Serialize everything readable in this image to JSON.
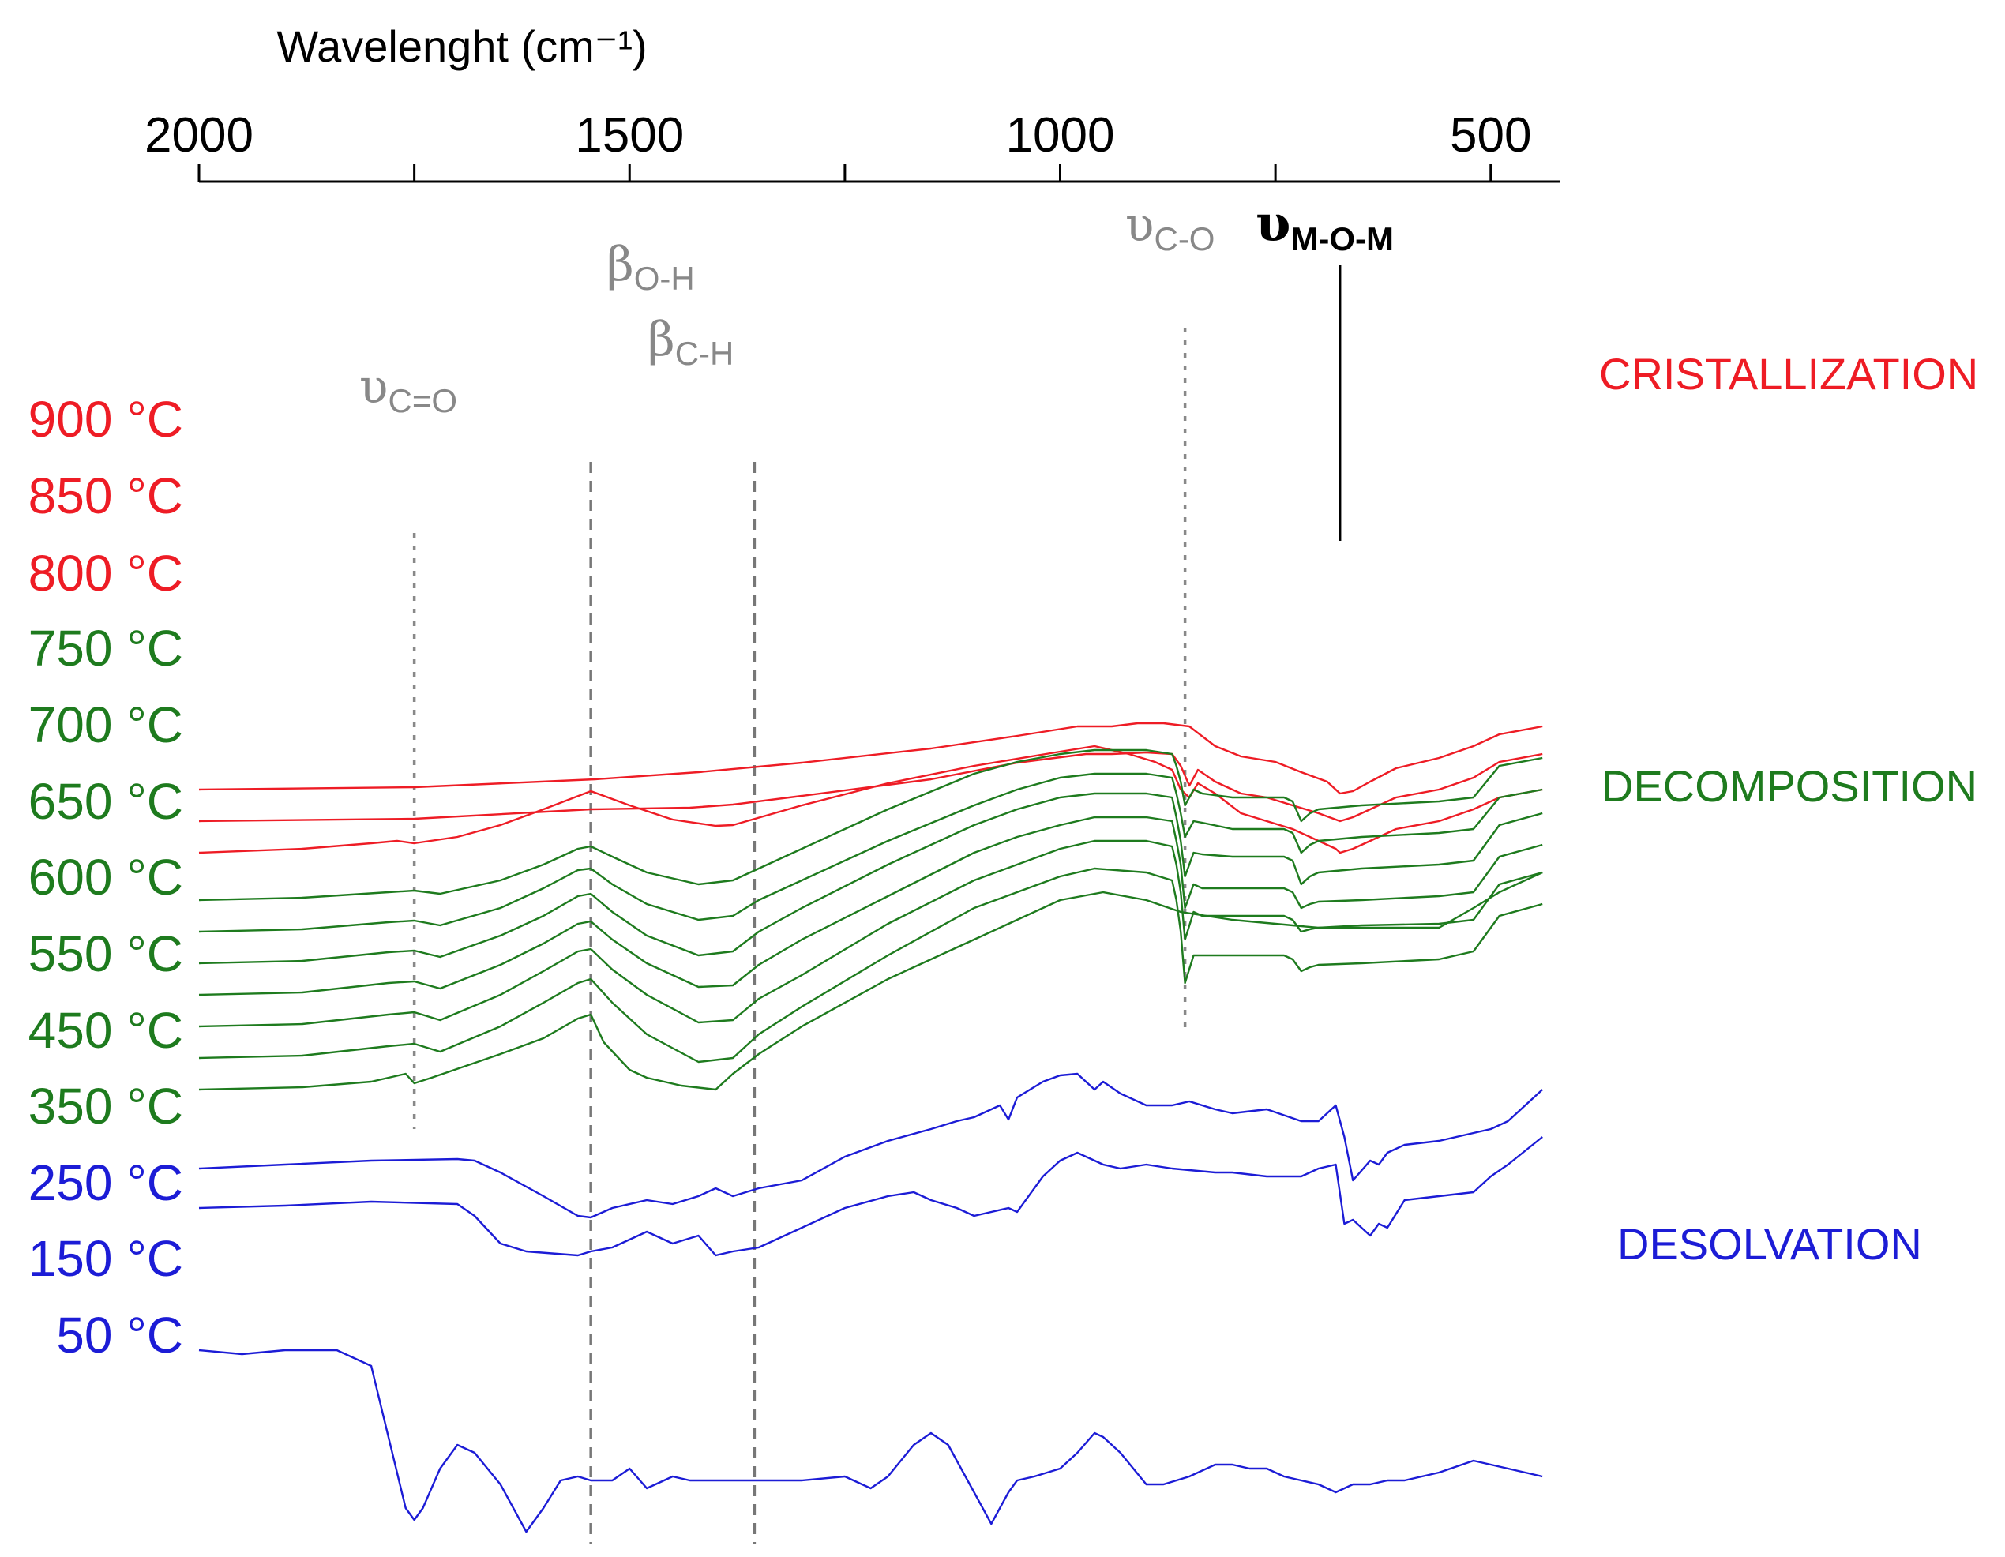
{
  "chart_data": {
    "type": "line",
    "title": "",
    "xlabel": "Wavelenght (cm⁻¹)",
    "xlim": [
      2000,
      420
    ],
    "ylabel": "",
    "x_ticks": [
      2000,
      1750,
      1500,
      1250,
      1000,
      750,
      500
    ],
    "x_tick_labels": [
      "2000",
      "",
      "1500",
      "",
      "1000",
      "",
      "500"
    ],
    "band_annotations": [
      {
        "symbol": "υ",
        "sub": "C=O",
        "x": 1750,
        "style": "dotted"
      },
      {
        "symbol": "β",
        "sub": "O-H",
        "x": 1545,
        "style": "dashed"
      },
      {
        "symbol": "β",
        "sub": "C-H",
        "x": 1355,
        "style": "dashed"
      },
      {
        "symbol": "υ",
        "sub": "C-O",
        "x": 855,
        "style": "dotted"
      },
      {
        "symbol": "υ",
        "sub": "M-O-M",
        "x": 675,
        "style": "solid"
      }
    ],
    "stage_labels": [
      {
        "text": "CRISTALLIZATION",
        "color": "#ee1c25"
      },
      {
        "text": "DECOMPOSITION",
        "color": "#1e7b1e"
      },
      {
        "text": "DESOLVATION",
        "color": "#1c1cd6"
      }
    ],
    "series": [
      {
        "name": "900 °C",
        "color": "#ee1c25",
        "offset": 920,
        "x": [
          2000,
          1750,
          1540,
          1420,
          1300,
          1150,
          1050,
          980,
          940,
          910,
          880,
          850,
          820,
          790,
          750,
          720,
          690,
          675,
          660,
          640,
          610,
          560,
          520,
          490,
          440
        ],
        "y": [
          0,
          3,
          13,
          22,
          34,
          52,
          68,
          80,
          80,
          84,
          84,
          80,
          55,
          42,
          35,
          22,
          10,
          -5,
          -2,
          10,
          27,
          40,
          55,
          70,
          80
        ]
      },
      {
        "name": "850 °C",
        "color": "#ee1c25",
        "offset": 880,
        "x": [
          2000,
          1750,
          1545,
          1430,
          1380,
          1300,
          1150,
          1050,
          970,
          940,
          900,
          870,
          860,
          850,
          840,
          820,
          790,
          760,
          730,
          700,
          675,
          660,
          640,
          610,
          560,
          520,
          490,
          440
        ],
        "y": [
          0,
          3,
          15,
          17,
          21,
          32,
          53,
          74,
          85,
          85,
          87,
          85,
          70,
          45,
          65,
          50,
          35,
          30,
          20,
          10,
          0,
          5,
          15,
          30,
          40,
          55,
          75,
          85
        ]
      },
      {
        "name": "800 °C",
        "color": "#ee1c25",
        "offset": 840,
        "x": [
          2000,
          1880,
          1800,
          1770,
          1750,
          1700,
          1650,
          1600,
          1545,
          1500,
          1450,
          1400,
          1380,
          1300,
          1200,
          1100,
          1000,
          960,
          920,
          890,
          870,
          860,
          850,
          840,
          820,
          790,
          760,
          730,
          700,
          680,
          675,
          660,
          640,
          610,
          560,
          520,
          490,
          440
        ],
        "y": [
          0,
          5,
          12,
          15,
          12,
          20,
          35,
          55,
          78,
          60,
          42,
          34,
          35,
          60,
          88,
          110,
          128,
          135,
          125,
          115,
          105,
          80,
          70,
          88,
          75,
          50,
          40,
          30,
          15,
          5,
          0,
          5,
          15,
          30,
          40,
          55,
          70,
          80
        ]
      },
      {
        "name": "750 °C",
        "color": "#1e7b1e",
        "offset": 780,
        "x": [
          2000,
          1880,
          1780,
          1750,
          1720,
          1650,
          1600,
          1560,
          1545,
          1520,
          1480,
          1420,
          1380,
          1350,
          1300,
          1200,
          1100,
          1050,
          1000,
          960,
          900,
          870,
          865,
          860,
          855,
          845,
          835,
          800,
          740,
          730,
          720,
          710,
          700,
          650,
          560,
          520,
          490,
          440
        ],
        "y": [
          0,
          3,
          10,
          12,
          8,
          25,
          45,
          65,
          68,
          55,
          35,
          20,
          25,
          40,
          65,
          115,
          160,
          175,
          185,
          190,
          190,
          185,
          170,
          150,
          120,
          140,
          135,
          130,
          130,
          125,
          100,
          110,
          115,
          120,
          125,
          130,
          170,
          180
        ]
      },
      {
        "name": "700 °C",
        "color": "#1e7b1e",
        "offset": 740,
        "x": [
          2000,
          1880,
          1780,
          1750,
          1720,
          1650,
          1600,
          1560,
          1545,
          1520,
          1480,
          1420,
          1380,
          1350,
          1300,
          1200,
          1100,
          1050,
          1000,
          960,
          900,
          870,
          865,
          860,
          855,
          845,
          835,
          800,
          740,
          730,
          720,
          710,
          700,
          650,
          560,
          520,
          490,
          440
        ],
        "y": [
          0,
          3,
          12,
          14,
          8,
          30,
          55,
          78,
          80,
          60,
          35,
          15,
          20,
          40,
          65,
          115,
          160,
          180,
          195,
          200,
          200,
          195,
          175,
          150,
          120,
          140,
          138,
          130,
          130,
          125,
          100,
          110,
          115,
          120,
          125,
          130,
          170,
          180
        ]
      },
      {
        "name": "650 °C",
        "color": "#1e7b1e",
        "offset": 700,
        "x": [
          2000,
          1880,
          1780,
          1750,
          1720,
          1650,
          1600,
          1560,
          1545,
          1520,
          1480,
          1420,
          1380,
          1350,
          1300,
          1200,
          1100,
          1050,
          1000,
          960,
          900,
          870,
          865,
          860,
          855,
          845,
          835,
          800,
          740,
          730,
          720,
          710,
          700,
          650,
          560,
          520,
          490,
          440
        ],
        "y": [
          0,
          3,
          14,
          16,
          8,
          35,
          60,
          85,
          88,
          65,
          35,
          10,
          15,
          40,
          70,
          125,
          175,
          195,
          210,
          215,
          215,
          210,
          185,
          155,
          110,
          140,
          138,
          135,
          135,
          130,
          100,
          110,
          115,
          120,
          125,
          130,
          175,
          190
        ]
      },
      {
        "name": "600 °C",
        "color": "#1e7b1e",
        "offset": 660,
        "x": [
          2000,
          1880,
          1780,
          1750,
          1720,
          1650,
          1600,
          1560,
          1545,
          1520,
          1480,
          1420,
          1380,
          1350,
          1300,
          1200,
          1100,
          1050,
          1000,
          960,
          900,
          870,
          865,
          860,
          855,
          845,
          835,
          800,
          740,
          730,
          720,
          710,
          700,
          650,
          560,
          520,
          490,
          440
        ],
        "y": [
          0,
          3,
          15,
          17,
          8,
          38,
          65,
          90,
          93,
          70,
          40,
          10,
          12,
          38,
          70,
          125,
          180,
          200,
          215,
          225,
          225,
          220,
          195,
          165,
          110,
          140,
          135,
          135,
          135,
          130,
          110,
          115,
          118,
          120,
          125,
          130,
          175,
          190
        ]
      },
      {
        "name": "550 °C",
        "color": "#1e7b1e",
        "offset": 620,
        "x": [
          2000,
          1880,
          1780,
          1750,
          1720,
          1650,
          1600,
          1560,
          1545,
          1520,
          1480,
          1420,
          1380,
          1350,
          1300,
          1200,
          1100,
          1050,
          1000,
          960,
          900,
          870,
          865,
          860,
          855,
          845,
          835,
          800,
          740,
          730,
          720,
          710,
          700,
          650,
          560,
          520,
          490,
          440
        ],
        "y": [
          0,
          3,
          15,
          18,
          8,
          40,
          70,
          95,
          98,
          72,
          40,
          5,
          8,
          35,
          65,
          130,
          185,
          205,
          225,
          235,
          235,
          228,
          205,
          170,
          110,
          145,
          140,
          140,
          140,
          135,
          120,
          123,
          125,
          128,
          130,
          135,
          180,
          195
        ]
      },
      {
        "name": "450 °C",
        "color": "#1e7b1e",
        "offset": 580,
        "x": [
          2000,
          1880,
          1780,
          1750,
          1720,
          1650,
          1600,
          1560,
          1545,
          1520,
          1480,
          1420,
          1380,
          1350,
          1300,
          1200,
          1100,
          1050,
          1000,
          960,
          900,
          870,
          865,
          860,
          855,
          845,
          835,
          800,
          740,
          730,
          720,
          710,
          700,
          650,
          560,
          520,
          490,
          440
        ],
        "y": [
          0,
          3,
          15,
          18,
          8,
          40,
          70,
          95,
          100,
          70,
          30,
          -5,
          0,
          30,
          65,
          130,
          190,
          210,
          230,
          240,
          235,
          225,
          200,
          160,
          95,
          130,
          130,
          130,
          130,
          125,
          110,
          115,
          118,
          120,
          125,
          135,
          180,
          195
        ]
      },
      {
        "name": "350 °C",
        "color": "#1e7b1e",
        "offset": 540,
        "x": [
          2000,
          1880,
          1800,
          1760,
          1750,
          1730,
          1650,
          1600,
          1560,
          1545,
          1530,
          1500,
          1480,
          1440,
          1400,
          1380,
          1350,
          1300,
          1200,
          1100,
          1050,
          1000,
          950,
          900,
          860,
          800,
          750,
          700,
          650,
          560,
          520,
          490,
          440
        ],
        "y": [
          0,
          3,
          10,
          20,
          8,
          15,
          45,
          65,
          90,
          95,
          60,
          25,
          15,
          5,
          0,
          20,
          45,
          80,
          140,
          190,
          215,
          240,
          250,
          240,
          225,
          215,
          210,
          205,
          205,
          205,
          230,
          250,
          275
        ]
      },
      {
        "name": "250 °C",
        "color": "#1c1cd6",
        "offset": 440,
        "x": [
          2000,
          1900,
          1800,
          1700,
          1680,
          1650,
          1600,
          1560,
          1545,
          1520,
          1480,
          1450,
          1420,
          1400,
          1380,
          1350,
          1300,
          1250,
          1200,
          1150,
          1120,
          1100,
          1070,
          1060,
          1050,
          1020,
          1000,
          980,
          960,
          950,
          930,
          900,
          870,
          850,
          820,
          800,
          760,
          720,
          700,
          680,
          670,
          660,
          640,
          630,
          620,
          600,
          560,
          520,
          500,
          480,
          440
        ],
        "y": [
          0,
          5,
          10,
          12,
          10,
          -5,
          -35,
          -60,
          -62,
          -50,
          -40,
          -45,
          -35,
          -25,
          -35,
          -25,
          -15,
          15,
          35,
          50,
          60,
          65,
          80,
          62,
          90,
          110,
          118,
          120,
          100,
          110,
          95,
          80,
          80,
          85,
          75,
          70,
          75,
          60,
          60,
          80,
          40,
          -15,
          10,
          5,
          20,
          30,
          35,
          45,
          50,
          60,
          100
        ]
      },
      {
        "name": "150 °C",
        "color": "#1c1cd6",
        "offset": 390,
        "x": [
          2000,
          1900,
          1800,
          1700,
          1680,
          1650,
          1620,
          1560,
          1545,
          1520,
          1480,
          1450,
          1420,
          1400,
          1380,
          1350,
          1300,
          1250,
          1200,
          1170,
          1150,
          1120,
          1100,
          1080,
          1060,
          1050,
          1020,
          1000,
          980,
          960,
          950,
          930,
          900,
          870,
          850,
          820,
          800,
          760,
          720,
          700,
          680,
          670,
          660,
          640,
          630,
          620,
          600,
          560,
          520,
          500,
          480,
          440
        ],
        "y": [
          0,
          3,
          8,
          5,
          -10,
          -45,
          -55,
          -60,
          -55,
          -50,
          -30,
          -45,
          -35,
          -60,
          -55,
          -50,
          -25,
          0,
          15,
          20,
          10,
          0,
          -10,
          -5,
          0,
          -5,
          40,
          60,
          70,
          60,
          55,
          50,
          55,
          50,
          48,
          45,
          45,
          40,
          40,
          50,
          55,
          -20,
          -15,
          -35,
          -20,
          -25,
          10,
          15,
          20,
          40,
          55,
          90
        ]
      },
      {
        "name": "50 °C",
        "color": "#1c1cd6",
        "offset": 210,
        "x": [
          2000,
          1950,
          1900,
          1860,
          1840,
          1800,
          1760,
          1750,
          1740,
          1720,
          1700,
          1680,
          1650,
          1620,
          1600,
          1580,
          1560,
          1545,
          1520,
          1500,
          1480,
          1450,
          1430,
          1400,
          1380,
          1350,
          1300,
          1250,
          1220,
          1200,
          1170,
          1150,
          1130,
          1100,
          1080,
          1060,
          1050,
          1030,
          1000,
          980,
          960,
          950,
          930,
          900,
          880,
          850,
          820,
          800,
          780,
          760,
          740,
          720,
          700,
          680,
          660,
          640,
          620,
          600,
          580,
          560,
          520,
          500,
          480,
          440
        ],
        "y": [
          0,
          -5,
          0,
          0,
          0,
          -20,
          -200,
          -215,
          -200,
          -150,
          -120,
          -130,
          -170,
          -230,
          -200,
          -165,
          -160,
          -165,
          -165,
          -150,
          -175,
          -160,
          -165,
          -165,
          -165,
          -165,
          -165,
          -160,
          -175,
          -160,
          -120,
          -105,
          -120,
          -180,
          -220,
          -180,
          -165,
          -160,
          -150,
          -130,
          -105,
          -110,
          -130,
          -170,
          -170,
          -160,
          -145,
          -145,
          -150,
          -150,
          -160,
          -165,
          -170,
          -180,
          -170,
          -170,
          -165,
          -165,
          -160,
          -155,
          -140,
          -145,
          -150,
          -160
        ]
      }
    ]
  },
  "axis": {
    "xlabel": "Wavelenght (cm⁻¹)",
    "tick_labels": [
      "2000",
      "1500",
      "1000",
      "500"
    ]
  },
  "annotations": {
    "c_eq_o": {
      "symbol": "υ",
      "sub": "C=O"
    },
    "o_h": {
      "symbol": "β",
      "sub": "O-H"
    },
    "c_h": {
      "symbol": "β",
      "sub": "C-H"
    },
    "c_o": {
      "symbol": "υ",
      "sub": "C-O"
    },
    "m_o_m": {
      "symbol": "υ",
      "sub": "M-O-M"
    }
  },
  "stages": {
    "cristallization": "CRISTALLIZATION",
    "decomposition": "DECOMPOSITION",
    "desolvation": "DESOLVATION"
  },
  "temperature_labels": [
    "900 °C",
    "850 °C",
    "800 °C",
    "750 °C",
    "700 °C",
    "650 °C",
    "600 °C",
    "550 °C",
    "450 °C",
    "350 °C",
    "250 °C",
    "150 °C",
    "50 °C"
  ]
}
